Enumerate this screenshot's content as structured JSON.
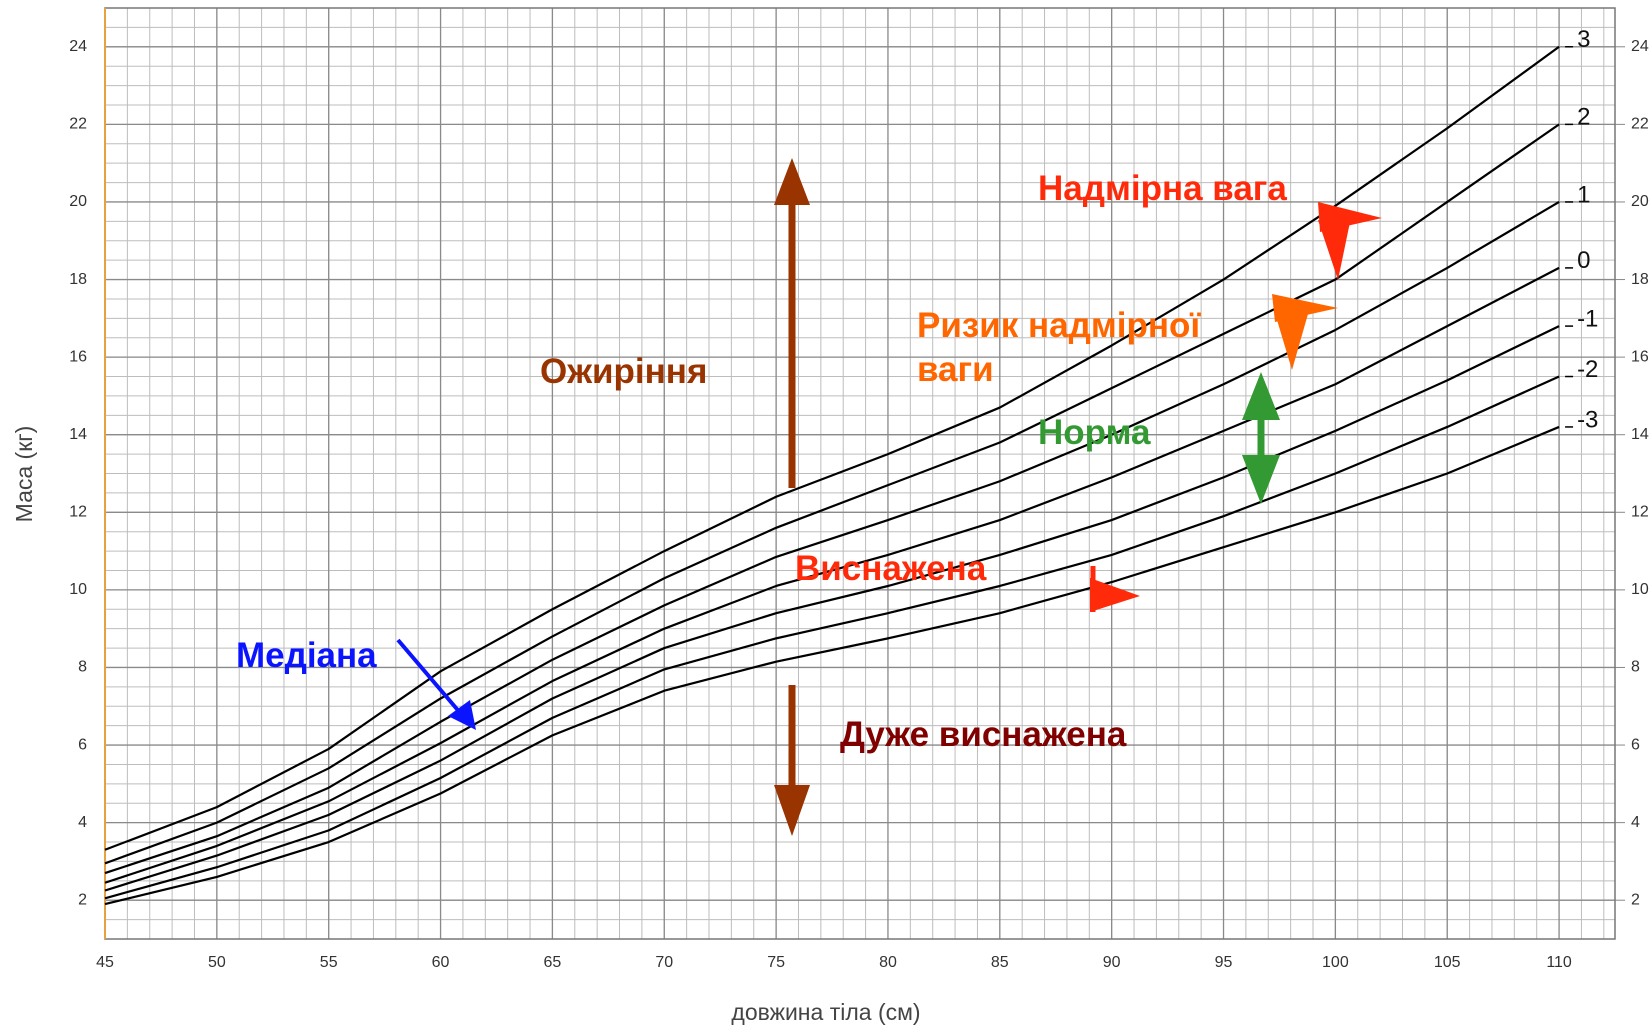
{
  "chart_data": {
    "type": "line",
    "x_label": "довжина тіла (см)",
    "y_label": "Маса (кг)",
    "xlim": [
      45,
      112.5
    ],
    "ylim": [
      1,
      25
    ],
    "xticks": [
      45,
      50,
      55,
      60,
      65,
      70,
      75,
      80,
      85,
      90,
      95,
      100,
      105,
      110
    ],
    "yticks": [
      2,
      4,
      6,
      8,
      10,
      12,
      14,
      16,
      18,
      20,
      22,
      24
    ],
    "grid": true,
    "x": [
      45,
      50,
      55,
      60,
      65,
      70,
      75,
      80,
      85,
      90,
      95,
      100,
      105,
      110
    ],
    "series": [
      {
        "name": "3",
        "color": "#000000",
        "values": [
          3.3,
          4.4,
          5.9,
          7.9,
          9.5,
          11.0,
          12.4,
          13.5,
          14.7,
          16.3,
          18.0,
          19.9,
          21.9,
          24.0
        ]
      },
      {
        "name": "2",
        "color": "#000000",
        "values": [
          2.95,
          4.0,
          5.4,
          7.2,
          8.8,
          10.3,
          11.6,
          12.7,
          13.8,
          15.2,
          16.6,
          18.0,
          20.0,
          22.0
        ]
      },
      {
        "name": "1",
        "color": "#000000",
        "values": [
          2.7,
          3.65,
          4.9,
          6.6,
          8.2,
          9.6,
          10.85,
          11.8,
          12.8,
          14.0,
          15.3,
          16.7,
          18.3,
          20.0
        ]
      },
      {
        "name": "0",
        "color": "#000000",
        "values": [
          2.45,
          3.4,
          4.55,
          6.05,
          7.65,
          9.0,
          10.1,
          10.9,
          11.8,
          12.9,
          14.1,
          15.3,
          16.8,
          18.3
        ]
      },
      {
        "name": "-1",
        "color": "#000000",
        "values": [
          2.25,
          3.15,
          4.2,
          5.6,
          7.2,
          8.5,
          9.4,
          10.1,
          10.9,
          11.8,
          12.9,
          14.1,
          15.4,
          16.8
        ]
      },
      {
        "name": "-2",
        "color": "#000000",
        "values": [
          2.05,
          2.85,
          3.8,
          5.15,
          6.7,
          7.95,
          8.75,
          9.4,
          10.1,
          10.9,
          11.9,
          13.0,
          14.2,
          15.5
        ]
      },
      {
        "name": "-3",
        "color": "#000000",
        "values": [
          1.9,
          2.6,
          3.5,
          4.75,
          6.25,
          7.4,
          8.15,
          8.75,
          9.4,
          10.2,
          11.1,
          12.0,
          13.0,
          14.2
        ]
      }
    ],
    "annotations": [
      {
        "text": "Ожиріння",
        "color": "#993300"
      },
      {
        "text": "Надмірна вага",
        "color": "#ff2a0a"
      },
      {
        "text": "Ризик надмірної ваги",
        "color": "#ff6600"
      },
      {
        "text": "Норма",
        "color": "#339933"
      },
      {
        "text": "Виснажена",
        "color": "#ff2a0a"
      },
      {
        "text": "Медіана",
        "color": "#0a14ff"
      },
      {
        "text": "Дуже виснажена",
        "color": "#800000"
      }
    ]
  }
}
